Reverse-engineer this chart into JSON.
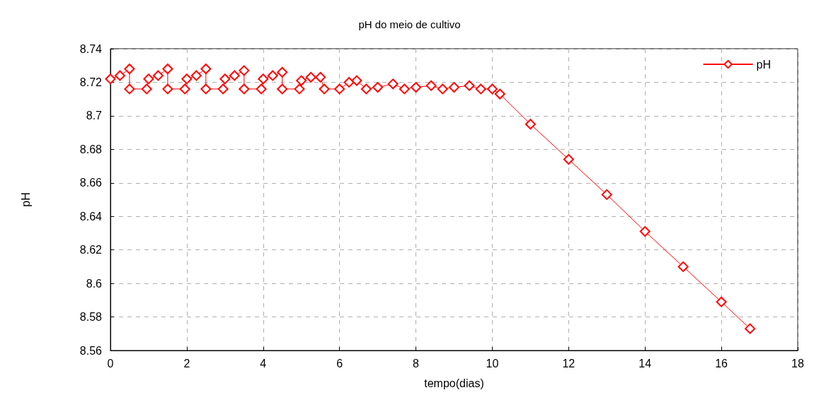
{
  "chart_data": {
    "type": "line",
    "title": "pH do meio de cultivo",
    "xlabel": "tempo(dias)",
    "ylabel": "pH",
    "xlim": [
      0,
      18
    ],
    "xticks": [
      0,
      2,
      4,
      6,
      8,
      10,
      12,
      14,
      16,
      18
    ],
    "ylim": [
      8.56,
      8.74
    ],
    "yticks": [
      8.56,
      8.58,
      8.6,
      8.62,
      8.64,
      8.66,
      8.68,
      8.7,
      8.72,
      8.74
    ],
    "grid": true,
    "legend": "top right",
    "marker": "diamond",
    "line_style": "solid",
    "series": [
      {
        "name": "pH",
        "color": "#ff0000",
        "x": [
          0,
          0.25,
          0.5,
          0.5,
          0.95,
          1,
          1.25,
          1.5,
          1.5,
          1.95,
          2,
          2.25,
          2.5,
          2.5,
          2.95,
          3,
          3.25,
          3.5,
          3.5,
          3.95,
          4,
          4.25,
          4.5,
          4.5,
          4.95,
          5,
          5.25,
          5.5,
          5.6,
          6,
          6.25,
          6.45,
          6.7,
          7,
          7.4,
          7.7,
          8,
          8.4,
          8.7,
          9,
          9.4,
          9.7,
          10,
          10.2,
          11,
          12,
          13,
          14,
          15,
          16,
          16.75
        ],
        "values": [
          8.722,
          8.724,
          8.728,
          8.716,
          8.716,
          8.722,
          8.724,
          8.728,
          8.716,
          8.716,
          8.722,
          8.724,
          8.728,
          8.716,
          8.716,
          8.722,
          8.724,
          8.727,
          8.716,
          8.716,
          8.722,
          8.724,
          8.726,
          8.716,
          8.716,
          8.721,
          8.723,
          8.723,
          8.716,
          8.716,
          8.72,
          8.721,
          8.716,
          8.717,
          8.719,
          8.716,
          8.717,
          8.718,
          8.716,
          8.717,
          8.718,
          8.716,
          8.716,
          8.713,
          8.695,
          8.674,
          8.653,
          8.631,
          8.61,
          8.589,
          8.573
        ]
      }
    ]
  }
}
